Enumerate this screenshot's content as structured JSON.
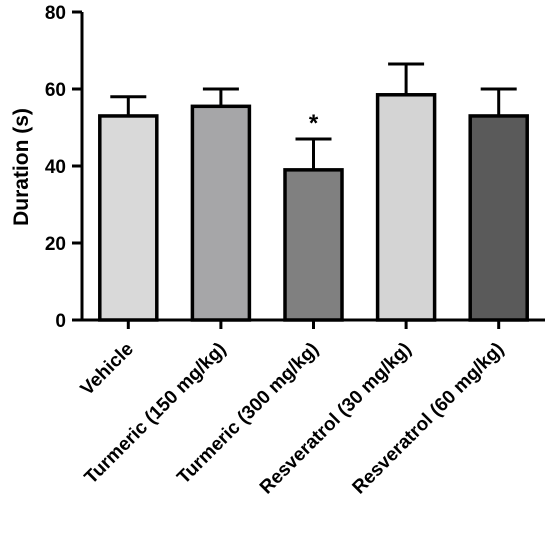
{
  "chart_data": {
    "type": "bar",
    "ylabel": "Duration (s)",
    "ylim": [
      0,
      80
    ],
    "yticks": [
      "0",
      "20",
      "40",
      "60",
      "80"
    ],
    "categories": [
      "Vehicle",
      "Turmeric (150 mg/kg)",
      "Turmeric (300 mg/kg)",
      "Resveratrol (30 mg/kg)",
      "Resveratrol (60 mg/kg)"
    ],
    "values": [
      53,
      55.5,
      39,
      58.5,
      53
    ],
    "error": [
      5,
      4.5,
      8,
      8,
      7
    ],
    "significance": [
      "",
      "",
      "*",
      "",
      ""
    ],
    "colors": [
      "#d9d9d9",
      "#a6a6a8",
      "#808080",
      "#d4d4d4",
      "#5a5a5a"
    ],
    "grid": false,
    "legend": "none"
  }
}
